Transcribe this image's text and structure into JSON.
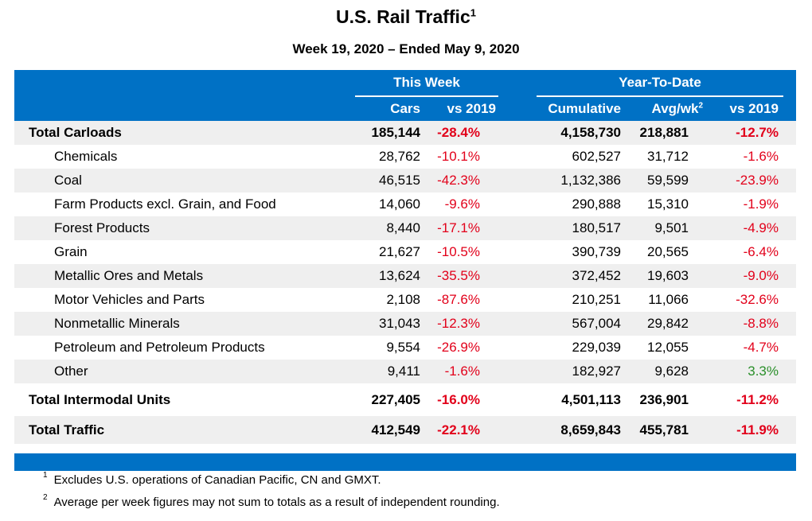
{
  "title": "U.S. Rail Traffic",
  "title_sup": "1",
  "subtitle": "Week 19, 2020 – Ended May 9, 2020",
  "headers": {
    "this_week": "This Week",
    "ytd": "Year-To-Date",
    "cars": "Cars",
    "vs2019_week": "vs 2019",
    "cumulative": "Cumulative",
    "avgwk": "Avg/wk",
    "avgwk_sup": "2",
    "vs2019_ytd": "vs 2019"
  },
  "rows": [
    {
      "label": "Total Carloads",
      "cars": "185,144",
      "vs_week": "-28.4%",
      "cum": "4,158,730",
      "avg": "218,881",
      "vs_ytd": "-12.7%"
    },
    {
      "label": "Chemicals",
      "cars": "28,762",
      "vs_week": "-10.1%",
      "cum": "602,527",
      "avg": "31,712",
      "vs_ytd": "-1.6%"
    },
    {
      "label": "Coal",
      "cars": "46,515",
      "vs_week": "-42.3%",
      "cum": "1,132,386",
      "avg": "59,599",
      "vs_ytd": "-23.9%"
    },
    {
      "label": "Farm Products excl. Grain, and Food",
      "cars": "14,060",
      "vs_week": "-9.6%",
      "cum": "290,888",
      "avg": "15,310",
      "vs_ytd": "-1.9%"
    },
    {
      "label": "Forest Products",
      "cars": "8,440",
      "vs_week": "-17.1%",
      "cum": "180,517",
      "avg": "9,501",
      "vs_ytd": "-4.9%"
    },
    {
      "label": "Grain",
      "cars": "21,627",
      "vs_week": "-10.5%",
      "cum": "390,739",
      "avg": "20,565",
      "vs_ytd": "-6.4%"
    },
    {
      "label": "Metallic Ores and Metals",
      "cars": "13,624",
      "vs_week": "-35.5%",
      "cum": "372,452",
      "avg": "19,603",
      "vs_ytd": "-9.0%"
    },
    {
      "label": "Motor Vehicles and Parts",
      "cars": "2,108",
      "vs_week": "-87.6%",
      "cum": "210,251",
      "avg": "11,066",
      "vs_ytd": "-32.6%"
    },
    {
      "label": "Nonmetallic Minerals",
      "cars": "31,043",
      "vs_week": "-12.3%",
      "cum": "567,004",
      "avg": "29,842",
      "vs_ytd": "-8.8%"
    },
    {
      "label": "Petroleum and Petroleum Products",
      "cars": "9,554",
      "vs_week": "-26.9%",
      "cum": "229,039",
      "avg": "12,055",
      "vs_ytd": "-4.7%"
    },
    {
      "label": "Other",
      "cars": "9,411",
      "vs_week": "-1.6%",
      "cum": "182,927",
      "avg": "9,628",
      "vs_ytd": "3.3%"
    },
    {
      "label": "Total Intermodal Units",
      "cars": "227,405",
      "vs_week": "-16.0%",
      "cum": "4,501,113",
      "avg": "236,901",
      "vs_ytd": "-11.2%"
    },
    {
      "label": "Total Traffic",
      "cars": "412,549",
      "vs_week": "-22.1%",
      "cum": "8,659,843",
      "avg": "455,781",
      "vs_ytd": "-11.9%"
    }
  ],
  "footnotes": [
    {
      "mark": "1",
      "text": "Excludes U.S. operations of Canadian Pacific, CN and GMXT."
    },
    {
      "mark": "2",
      "text": "Average per week figures may not sum to totals as a result of independent rounding."
    }
  ],
  "colors": {
    "header_bg": "#0071c5",
    "negative": "#e2001a",
    "positive": "#2a8f2a",
    "stripe": "#efefef"
  }
}
